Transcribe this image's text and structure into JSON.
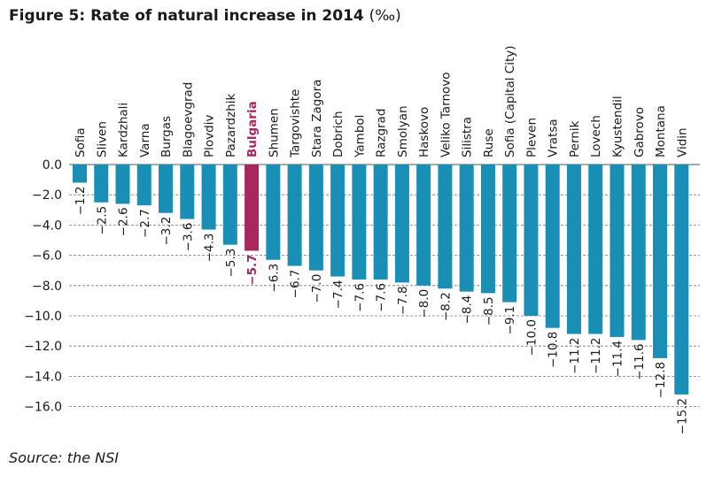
{
  "figure": {
    "title": "Figure 5: Rate of natural increase in 2014",
    "title_unit": "(‰)",
    "source": "Source: the NSI"
  },
  "colors": {
    "bar": "#1a8fb5",
    "highlight": "#a8285e",
    "grid": "#777777",
    "text": "#1a1a1a"
  },
  "chart_data": {
    "type": "bar",
    "title": "Figure 5: Rate of natural increase in 2014 (‰)",
    "xlabel": "",
    "ylabel": "",
    "ylim": [
      -16,
      0
    ],
    "yticks": [
      0,
      -2,
      -4,
      -6,
      -8,
      -10,
      -12,
      -14,
      -16
    ],
    "ytick_labels": [
      "0.0",
      "−2.0",
      "−4.0",
      "−6.0",
      "−8.0",
      "−10.0",
      "−12.0",
      "−14.0",
      "−16.0"
    ],
    "grid": true,
    "highlight_category": "Bulgaria",
    "categories": [
      "Sofia",
      "Sliven",
      "Kardzhali",
      "Varna",
      "Burgas",
      "Blagoevgrad",
      "Plovdiv",
      "Pazardzhik",
      "Bulgaria",
      "Shumen",
      "Targovishte",
      "Stara Zagora",
      "Dobrich",
      "Yambol",
      "Razgrad",
      "Smolyan",
      "Haskovo",
      "Veliko Tarnovo",
      "Silistra",
      "Ruse",
      "Sofia (Capital City)",
      "Pleven",
      "Vratsa",
      "Pernik",
      "Lovech",
      "Kyustendil",
      "Gabrovo",
      "Montana",
      "Vidin"
    ],
    "values": [
      -1.2,
      -2.5,
      -2.6,
      -2.7,
      -3.2,
      -3.6,
      -4.3,
      -5.3,
      -5.7,
      -6.3,
      -6.7,
      -7.0,
      -7.4,
      -7.6,
      -7.6,
      -7.8,
      -8.0,
      -8.2,
      -8.4,
      -8.5,
      -9.1,
      -10.0,
      -10.8,
      -11.2,
      -11.2,
      -11.4,
      -11.6,
      -12.8,
      -15.2
    ],
    "value_labels": [
      "−1.2",
      "−2.5",
      "−2.6",
      "−2.7",
      "−3.2",
      "−3.6",
      "−4.3",
      "−5.3",
      "−5.7",
      "−6.3",
      "−6.7",
      "−7.0",
      "−7.4",
      "−7.6",
      "−7.6",
      "−7.8",
      "−8.0",
      "−8.2",
      "−8.4",
      "−8.5",
      "−9.1",
      "−10.0",
      "−10.8",
      "−11.2",
      "−11.2",
      "−11.4",
      "−11.6",
      "−12.8",
      "−15.2"
    ]
  }
}
